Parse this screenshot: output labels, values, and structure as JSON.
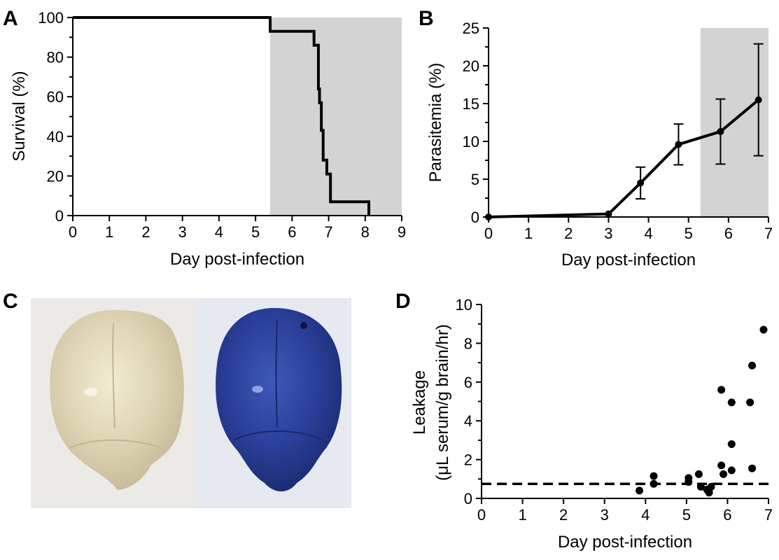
{
  "chart_data": [
    {
      "panel": "A",
      "type": "line",
      "xlabel": "Day post-infection",
      "ylabel": "Survival (%)",
      "xlim": [
        0,
        9
      ],
      "ylim": [
        0,
        100
      ],
      "xticks": [
        "0",
        "1",
        "2",
        "3",
        "4",
        "5",
        "6",
        "7",
        "8",
        "9"
      ],
      "yticks": [
        "0",
        "20",
        "40",
        "60",
        "80",
        "100"
      ],
      "shaded_x_range": [
        5.4,
        9
      ],
      "shade_color": "#d3d3d3",
      "step": true,
      "series": [
        {
          "x": [
            0,
            5.4,
            5.4,
            6.6,
            6.6,
            6.72,
            6.72,
            6.75,
            6.75,
            6.8,
            6.8,
            6.85,
            6.85,
            6.95,
            6.95,
            7.05,
            7.05,
            8.1,
            8.1
          ],
          "y": [
            100,
            100,
            93,
            93,
            86,
            86,
            64,
            64,
            57,
            57,
            43,
            43,
            28,
            28,
            21,
            21,
            7,
            7,
            0
          ]
        }
      ]
    },
    {
      "panel": "B",
      "type": "line",
      "xlabel": "Day post-infection",
      "ylabel": "Parasitemia (%)",
      "xlim": [
        0,
        7
      ],
      "ylim": [
        0,
        25
      ],
      "xticks": [
        "0",
        "1",
        "2",
        "3",
        "4",
        "5",
        "6",
        "7"
      ],
      "yticks": [
        "0",
        "5",
        "10",
        "15",
        "20",
        "25"
      ],
      "shaded_x_range": [
        5.3,
        7
      ],
      "shade_color": "#d3d3d3",
      "series": [
        {
          "x": [
            0,
            3,
            3.8,
            4.75,
            5.8,
            6.75
          ],
          "y": [
            0,
            0.4,
            4.5,
            9.6,
            11.3,
            15.5
          ],
          "err": [
            0,
            0,
            2.1,
            2.7,
            4.3,
            7.4
          ]
        }
      ]
    },
    {
      "panel": "D",
      "type": "scatter",
      "xlabel": "Day post-infection",
      "ylabel_line1": "Leakage",
      "ylabel_line2": "(μL serum/g brain/hr)",
      "xlim": [
        0,
        7
      ],
      "ylim": [
        0,
        10
      ],
      "xticks": [
        "0",
        "1",
        "2",
        "3",
        "4",
        "5",
        "6",
        "7"
      ],
      "yticks": [
        "0",
        "2",
        "4",
        "6",
        "8",
        "10"
      ],
      "threshold": 0.75,
      "series": [
        {
          "x": [
            3.85,
            4.2,
            4.2,
            5.05,
            5.05,
            5.3,
            5.35,
            5.5,
            5.55,
            5.6,
            5.85,
            5.85,
            5.9,
            6.1,
            6.1,
            6.1,
            6.55,
            6.6,
            6.6,
            6.88
          ],
          "y": [
            0.4,
            1.15,
            0.75,
            1.05,
            0.85,
            1.25,
            0.6,
            0.45,
            0.3,
            0.6,
            5.6,
            1.7,
            1.25,
            4.95,
            2.8,
            1.45,
            4.95,
            1.55,
            6.85,
            8.7
          ]
        }
      ]
    }
  ],
  "panel_c": {
    "letter": "C",
    "left_brain_color": "#dcd3b4",
    "right_brain_color": "#2a3f9a",
    "background_color": "#ececec"
  }
}
